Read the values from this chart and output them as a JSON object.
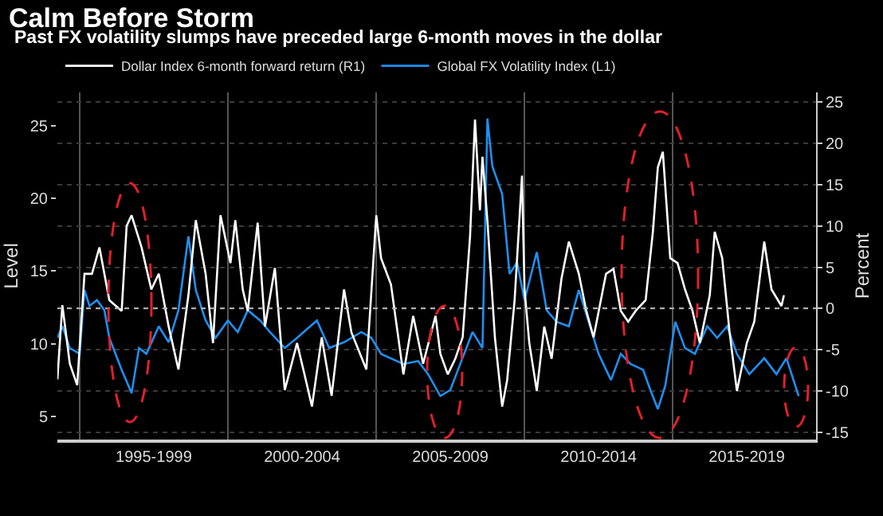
{
  "chart_data": {
    "type": "line",
    "title": "Calm Before Storm",
    "subtitle": "Past FX volatility slumps have preceded large 6-month moves in the dollar",
    "ylabel": "Level",
    "y2label": "Percent",
    "series": [
      {
        "name": "Dollar Index 6-month forward return (R1)",
        "color": "#ffffff",
        "axis": "y2",
        "x": [
          "1994-04",
          "1994-06",
          "1994-09",
          "1994-12",
          "1995-03",
          "1995-06",
          "1995-09",
          "1996-01",
          "1996-06",
          "1996-08",
          "1996-10",
          "1997-02",
          "1997-06",
          "1997-09",
          "1998-01",
          "1998-05",
          "1998-09",
          "1998-12",
          "1999-04",
          "1999-07",
          "1999-10",
          "2000-02",
          "2000-04",
          "2000-07",
          "2000-09",
          "2001-01",
          "2001-04",
          "2001-08",
          "2001-12",
          "2002-05",
          "2002-08",
          "2002-11",
          "2003-03",
          "2003-07",
          "2003-12",
          "2004-03",
          "2004-09",
          "2005-01",
          "2005-03",
          "2005-07",
          "2005-12",
          "2006-04",
          "2006-08",
          "2007-01",
          "2007-03",
          "2007-06",
          "2007-09",
          "2007-12",
          "2008-03",
          "2008-05",
          "2008-07",
          "2008-08",
          "2008-10",
          "2009-01",
          "2009-04",
          "2009-06",
          "2009-09",
          "2009-12",
          "2010-01",
          "2010-03",
          "2010-06",
          "2010-09",
          "2010-12",
          "2011-04",
          "2011-07",
          "2011-11",
          "2012-02",
          "2012-05",
          "2012-10",
          "2013-01",
          "2013-04",
          "2013-07",
          "2013-10",
          "2014-02",
          "2014-05",
          "2014-07",
          "2014-09",
          "2014-12",
          "2015-03",
          "2015-06",
          "2015-09",
          "2015-12",
          "2016-04",
          "2016-06",
          "2016-09",
          "2016-12",
          "2017-03",
          "2017-07",
          "2017-10",
          "2018-02",
          "2018-05",
          "2018-09",
          "2018-10"
        ],
        "values": [
          -8.6,
          0.4,
          -6.7,
          -9.3,
          4.2,
          4.2,
          7.4,
          1.0,
          -0.3,
          10,
          11.3,
          7.4,
          2.3,
          4.2,
          -2.2,
          -7.4,
          1.6,
          10.7,
          4.2,
          -4.2,
          11.3,
          5.5,
          10.7,
          2.3,
          -0.3,
          10.4,
          -2.2,
          4.9,
          -9.9,
          -4.2,
          -8,
          -11.9,
          -3.5,
          -10.6,
          2.3,
          -2.9,
          -7.4,
          11.3,
          6.1,
          2.9,
          -8,
          -0.9,
          -6.7,
          -0.9,
          -5.5,
          -8.0,
          -6.1,
          -3.5,
          8.7,
          22.9,
          11.9,
          18.4,
          10.6,
          -3.5,
          -11.9,
          -8.7,
          1.0,
          16.1,
          2.3,
          -4.2,
          -10.0,
          -2.2,
          -6.1,
          3.6,
          8.1,
          4.2,
          -0.3,
          -3.5,
          4.2,
          4.8,
          -0.3,
          -1.6,
          -0.3,
          1.0,
          9.3,
          17.1,
          19.0,
          6.1,
          5.5,
          2.3,
          -0.3,
          -4.2,
          1.6,
          9.3,
          6.1,
          -2.9,
          -10.0,
          -4.2,
          -1.6,
          8.1,
          2.3,
          0.3,
          1.6
        ]
      },
      {
        "name": "Global FX Volatility Index (L1)",
        "color": "#1f8ff0",
        "axis": "y",
        "x": [
          "1994-04",
          "1994-06",
          "1994-09",
          "1995-01",
          "1995-03",
          "1995-05",
          "1995-08",
          "1995-11",
          "1996-01",
          "1996-06",
          "1996-10",
          "1997-01",
          "1997-04",
          "1997-09",
          "1998-01",
          "1998-05",
          "1998-09",
          "1998-12",
          "1999-04",
          "1999-08",
          "2000-01",
          "2000-05",
          "2000-09",
          "2001-02",
          "2001-06",
          "2001-12",
          "2002-05",
          "2003-01",
          "2003-06",
          "2003-12",
          "2004-07",
          "2004-11",
          "2005-03",
          "2005-12",
          "2006-06",
          "2006-10",
          "2007-03",
          "2007-07",
          "2007-11",
          "2008-04",
          "2008-08",
          "2008-10",
          "2008-12",
          "2009-04",
          "2009-07",
          "2009-10",
          "2010-01",
          "2010-06",
          "2010-10",
          "2011-02",
          "2011-07",
          "2011-11",
          "2012-03",
          "2012-07",
          "2012-12",
          "2013-04",
          "2013-08",
          "2014-01",
          "2014-04",
          "2014-07",
          "2014-10",
          "2015-02",
          "2015-06",
          "2015-10",
          "2016-03",
          "2016-07",
          "2016-11",
          "2017-03",
          "2017-08",
          "2018-02",
          "2018-07",
          "2018-11",
          "2019-04"
        ],
        "values": [
          10.4,
          11.2,
          9.7,
          9.3,
          13.7,
          12.6,
          13.0,
          12.3,
          10.4,
          8.2,
          6.6,
          9.7,
          9.3,
          11.2,
          10.1,
          12.3,
          17.4,
          13.7,
          11.6,
          10.4,
          11.6,
          10.8,
          12.3,
          11.6,
          10.8,
          9.7,
          10.4,
          11.6,
          9.7,
          10.1,
          10.8,
          10.4,
          9.3,
          8.6,
          8.8,
          7.9,
          6.4,
          6.8,
          8.6,
          10.8,
          9.7,
          25.5,
          22.2,
          20.3,
          14.8,
          15.6,
          13.0,
          16.3,
          12.3,
          11.5,
          11.2,
          13.7,
          11.5,
          9.3,
          7.5,
          9.3,
          8.6,
          8.2,
          6.8,
          5.5,
          7.1,
          11.5,
          9.7,
          9.3,
          11.2,
          10.4,
          11.2,
          9.3,
          7.9,
          9.0,
          7.9,
          9.0,
          6.4
        ]
      }
    ],
    "xlim": [
      "1994-04",
      "2019-11"
    ],
    "xticks": [
      {
        "value": "1995",
        "label": null
      },
      {
        "value": "1997-07",
        "label": "1995-1999"
      },
      {
        "value": "2000",
        "label": null
      },
      {
        "value": "2002-07",
        "label": "2000-2004"
      },
      {
        "value": "2005",
        "label": null
      },
      {
        "value": "2007-07",
        "label": "2005-2009"
      },
      {
        "value": "2010",
        "label": null
      },
      {
        "value": "2012-07",
        "label": "2010-2014"
      },
      {
        "value": "2015",
        "label": null
      },
      {
        "value": "2017-07",
        "label": "2015-2019"
      }
    ],
    "ylim": [
      3.4,
      27.3
    ],
    "yticks": [
      5,
      10,
      15,
      20,
      25
    ],
    "y2lim": [
      -15.9,
      26.2
    ],
    "y2ticks": [
      -15,
      -10,
      -5,
      0,
      5,
      10,
      15,
      20,
      25
    ],
    "ref_lines": [
      {
        "axis": "y2",
        "value": 0,
        "color": "#bbbbbb",
        "line_style": "dotted"
      }
    ],
    "grid": true,
    "legend": "top left",
    "marker": "none",
    "line_style": "solid"
  }
}
